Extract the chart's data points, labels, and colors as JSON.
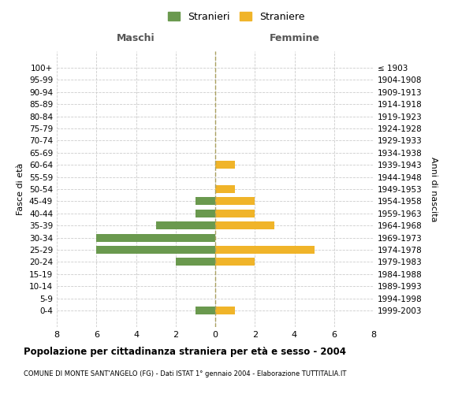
{
  "age_groups": [
    "100+",
    "95-99",
    "90-94",
    "85-89",
    "80-84",
    "75-79",
    "70-74",
    "65-69",
    "60-64",
    "55-59",
    "50-54",
    "45-49",
    "40-44",
    "35-39",
    "30-34",
    "25-29",
    "20-24",
    "15-19",
    "10-14",
    "5-9",
    "0-4"
  ],
  "birth_years": [
    "≤ 1903",
    "1904-1908",
    "1909-1913",
    "1914-1918",
    "1919-1923",
    "1924-1928",
    "1929-1933",
    "1934-1938",
    "1939-1943",
    "1944-1948",
    "1949-1953",
    "1954-1958",
    "1959-1963",
    "1964-1968",
    "1969-1973",
    "1974-1978",
    "1979-1983",
    "1984-1988",
    "1989-1993",
    "1994-1998",
    "1999-2003"
  ],
  "males": [
    0,
    0,
    0,
    0,
    0,
    0,
    0,
    0,
    0,
    0,
    0,
    1,
    1,
    3,
    6,
    6,
    2,
    0,
    0,
    0,
    1
  ],
  "females": [
    0,
    0,
    0,
    0,
    0,
    0,
    0,
    0,
    1,
    0,
    1,
    2,
    2,
    3,
    0,
    5,
    2,
    0,
    0,
    0,
    1
  ],
  "male_color": "#6a994e",
  "female_color": "#f0b429",
  "title": "Popolazione per cittadinanza straniera per età e sesso - 2004",
  "subtitle": "COMUNE DI MONTE SANT'ANGELO (FG) - Dati ISTAT 1° gennaio 2004 - Elaborazione TUTTITALIA.IT",
  "xlabel_left": "Maschi",
  "xlabel_right": "Femmine",
  "ylabel_left": "Fasce di età",
  "ylabel_right": "Anni di nascita",
  "legend_male": "Stranieri",
  "legend_female": "Straniere",
  "xlim": 8,
  "background_color": "#ffffff",
  "grid_color": "#cccccc"
}
